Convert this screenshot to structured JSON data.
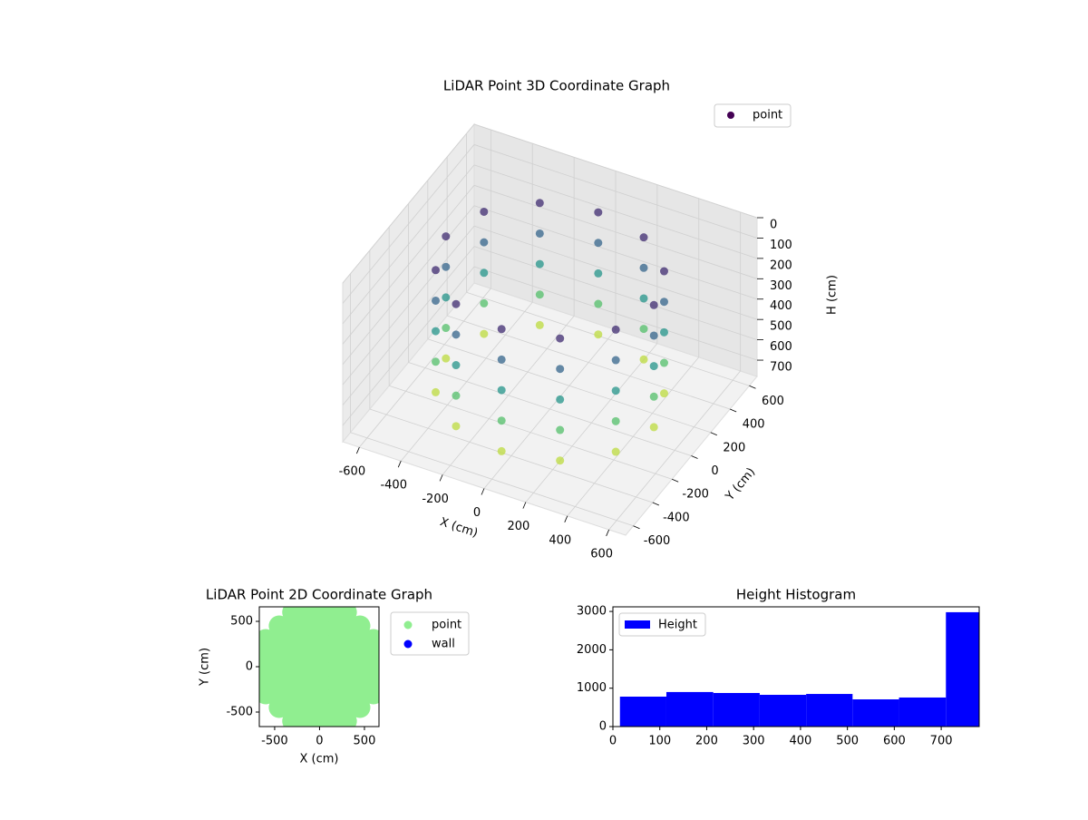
{
  "chart_data": [
    {
      "type": "scatter3d",
      "title": "LiDAR Point 3D Coordinate Graph",
      "x_label": "X (cm)",
      "y_label": "Y (cm)",
      "z_label": "H (cm)",
      "xlim": [
        -680,
        680
      ],
      "ylim": [
        -680,
        680
      ],
      "zlim": [
        0,
        780
      ],
      "z_inverted": true,
      "xticks": [
        -600,
        -400,
        -200,
        0,
        200,
        400,
        600
      ],
      "yticks": [
        -600,
        -400,
        -200,
        0,
        200,
        400,
        600
      ],
      "zticks": [
        0,
        100,
        200,
        300,
        400,
        500,
        600,
        700
      ],
      "legend": "upper right",
      "series": [
        {
          "name": "point",
          "colormap": "viridis",
          "x": [
            500,
            500,
            500,
            500,
            500,
            433,
            433,
            433,
            433,
            433,
            250,
            250,
            250,
            250,
            250,
            0,
            0,
            0,
            0,
            0,
            -250,
            -250,
            -250,
            -250,
            -250,
            -433,
            -433,
            -433,
            -433,
            -433,
            -500,
            -500,
            -500,
            -500,
            -500,
            -433,
            -433,
            -433,
            -433,
            -433,
            -250,
            -250,
            -250,
            -250,
            -250,
            0,
            0,
            0,
            0,
            0,
            250,
            250,
            250,
            250,
            250,
            433,
            433,
            433,
            433,
            433
          ],
          "y": [
            0,
            0,
            0,
            0,
            0,
            250,
            250,
            250,
            250,
            250,
            433,
            433,
            433,
            433,
            433,
            500,
            500,
            500,
            500,
            500,
            433,
            433,
            433,
            433,
            433,
            250,
            250,
            250,
            250,
            250,
            0,
            0,
            0,
            0,
            0,
            -250,
            -250,
            -250,
            -250,
            -250,
            -433,
            -433,
            -433,
            -433,
            -433,
            -500,
            -500,
            -500,
            -500,
            -500,
            -433,
            -433,
            -433,
            -433,
            -433,
            -250,
            -250,
            -250,
            -250,
            -250
          ],
          "h": [
            100,
            250,
            400,
            550,
            700,
            100,
            250,
            400,
            550,
            700,
            100,
            250,
            400,
            550,
            700,
            100,
            250,
            400,
            550,
            700,
            100,
            250,
            400,
            550,
            700,
            100,
            250,
            400,
            550,
            700,
            100,
            250,
            400,
            550,
            700,
            100,
            250,
            400,
            550,
            700,
            100,
            250,
            400,
            550,
            700,
            100,
            250,
            400,
            550,
            700,
            100,
            250,
            400,
            550,
            700,
            100,
            250,
            400,
            550,
            700
          ]
        }
      ]
    },
    {
      "type": "scatter",
      "title": "LiDAR Point 2D Coordinate Graph",
      "x_label": "X (cm)",
      "y_label": "Y (cm)",
      "xlim": [
        -671,
        662
      ],
      "ylim": [
        -660,
        660
      ],
      "xticks": [
        -500,
        0,
        500
      ],
      "yticks": [
        -500,
        0,
        500
      ],
      "legend": "outside upper left",
      "series": [
        {
          "name": "point",
          "color": "#90ee90",
          "x": [
            -600,
            -600,
            -600,
            -600,
            -600,
            -450,
            -450,
            -450,
            -450,
            -450,
            -450,
            -450,
            -300,
            -300,
            -300,
            -300,
            -300,
            -300,
            -300,
            -300,
            -300,
            -150,
            -150,
            -150,
            -150,
            -150,
            -150,
            -150,
            -150,
            -150,
            0,
            0,
            0,
            0,
            0,
            0,
            0,
            0,
            0,
            150,
            150,
            150,
            150,
            150,
            150,
            150,
            150,
            150,
            300,
            300,
            300,
            300,
            300,
            300,
            300,
            300,
            300,
            450,
            450,
            450,
            450,
            450,
            450,
            450,
            600,
            600,
            600,
            600,
            600
          ],
          "y": [
            -300,
            -150,
            0,
            150,
            300,
            -450,
            -300,
            -150,
            0,
            150,
            300,
            450,
            -600,
            -450,
            -300,
            -150,
            0,
            150,
            300,
            450,
            600,
            -600,
            -450,
            -300,
            -150,
            0,
            150,
            300,
            450,
            600,
            -600,
            -450,
            -300,
            -150,
            0,
            150,
            300,
            450,
            600,
            -600,
            -450,
            -300,
            -150,
            0,
            150,
            300,
            450,
            600,
            -600,
            -450,
            -300,
            -150,
            0,
            150,
            300,
            450,
            600,
            -450,
            -300,
            -150,
            0,
            150,
            300,
            450,
            -300,
            -150,
            0,
            150,
            300
          ]
        },
        {
          "name": "wall",
          "color": "#0000ff",
          "x": [],
          "y": []
        }
      ]
    },
    {
      "type": "histogram",
      "title": "Height Histogram",
      "bins": [
        15,
        114,
        214,
        313,
        412,
        511,
        610,
        710,
        781
      ],
      "series": [
        {
          "name": "Height",
          "color": "#0000ff",
          "values": [
            780,
            900,
            875,
            827,
            850,
            709,
            757,
            2980
          ]
        }
      ],
      "xlim": [
        0,
        781
      ],
      "ylim": [
        0,
        3120
      ],
      "xticks": [
        0,
        100,
        200,
        300,
        400,
        500,
        600,
        700
      ],
      "yticks": [
        0,
        1000,
        2000,
        3000
      ],
      "legend": "upper left"
    }
  ]
}
